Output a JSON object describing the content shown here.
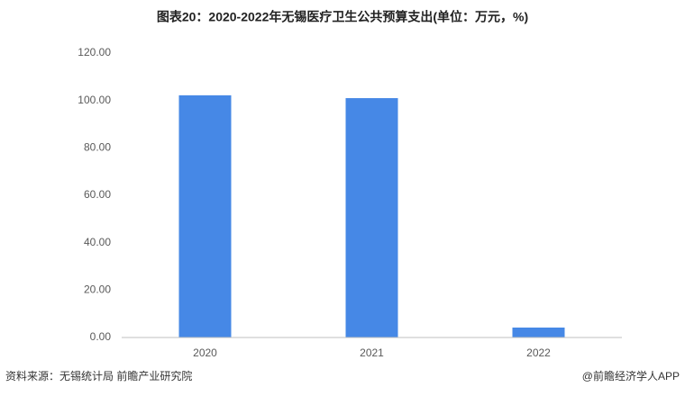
{
  "chart_data": {
    "type": "bar",
    "title": "图表20：2020-2022年无锡医疗卫生公共预算支出(单位：万元，%)",
    "categories": [
      "2020",
      "2021",
      "2022"
    ],
    "values": [
      102.2,
      101.0,
      4.2
    ],
    "color": "#4688e6",
    "ylim": [
      0,
      120
    ],
    "yticks": [
      {
        "value": 0,
        "label": "0.00"
      },
      {
        "value": 20,
        "label": "20.00"
      },
      {
        "value": 40,
        "label": "40.00"
      },
      {
        "value": 60,
        "label": "60.00"
      },
      {
        "value": 80,
        "label": "80.00"
      },
      {
        "value": 100,
        "label": "100.00"
      },
      {
        "value": 120,
        "label": "120.00"
      }
    ],
    "grid": false
  },
  "source": "资料来源：无锡统计局 前瞻产业研究院",
  "credit": "@前瞻经济学人APP"
}
